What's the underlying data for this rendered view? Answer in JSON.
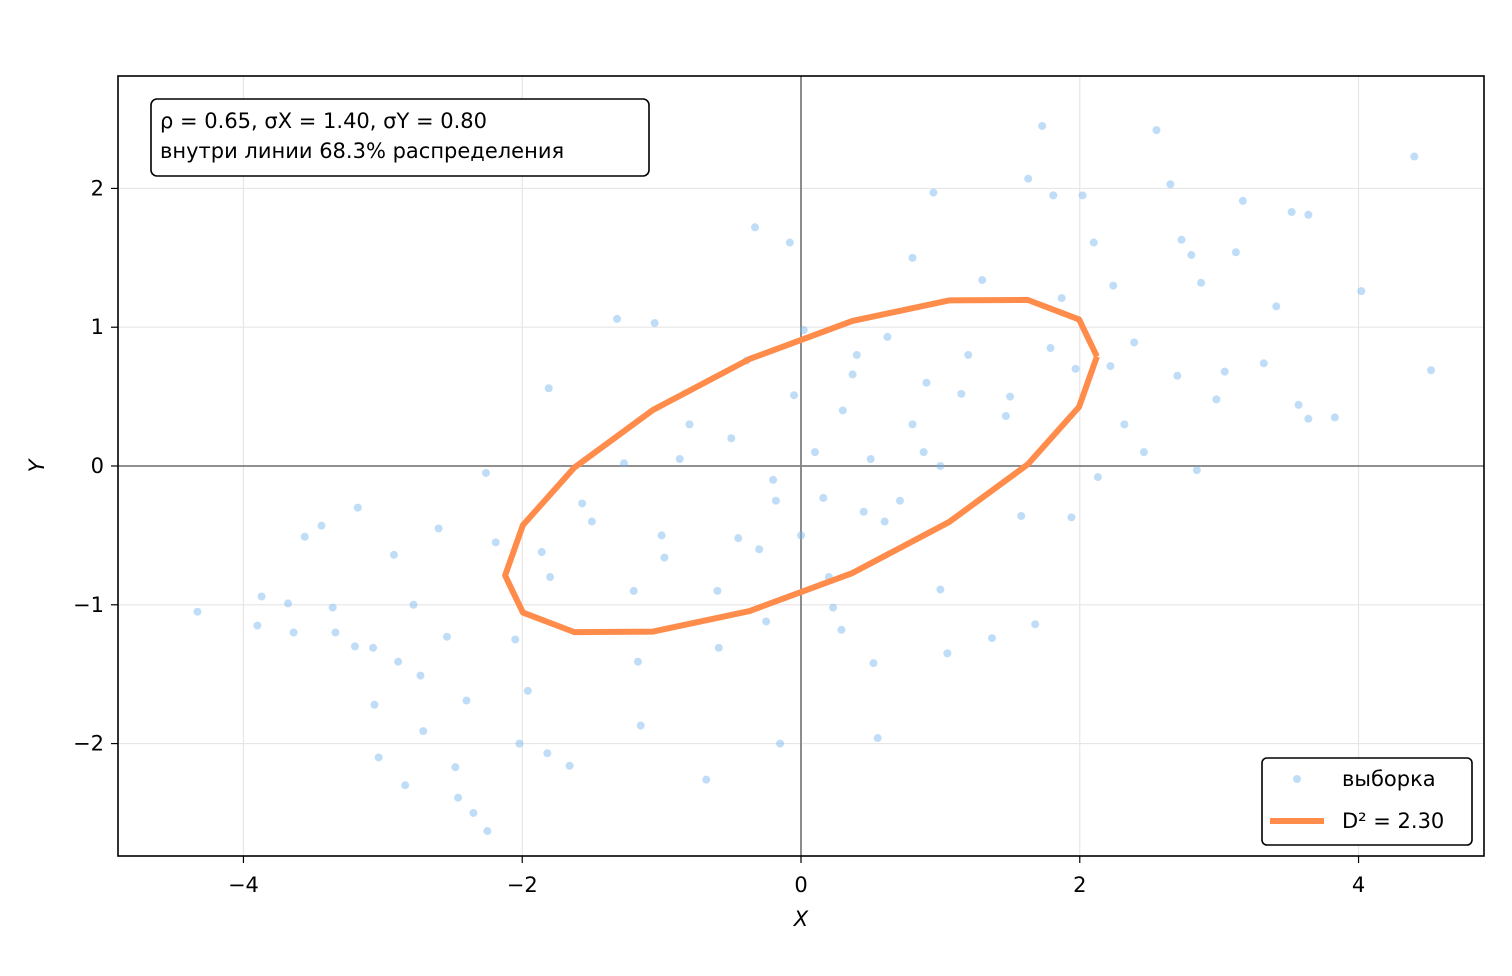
{
  "chart_data": {
    "type": "scatter",
    "xlabel": "X",
    "ylabel": "Y",
    "xlim": [
      -4.9,
      4.9
    ],
    "ylim": [
      -2.81,
      2.81
    ],
    "xticks": [
      {
        "value": -4,
        "label": "−4"
      },
      {
        "value": -2,
        "label": "−2"
      },
      0,
      2,
      4
    ],
    "yticks": [
      {
        "value": -2,
        "label": "−2"
      },
      {
        "value": -1,
        "label": "−1"
      },
      0,
      1,
      2
    ],
    "grid": true,
    "zero_lines": true,
    "legend": "lower right",
    "annotation": [
      "ρ = 0.65,  σX = 1.40,  σY = 0.80",
      "внутри линии 68.3% распределения"
    ],
    "series": [
      {
        "name": "выборка",
        "type": "scatter",
        "color": "#74b3f0",
        "x": [
          -4.33,
          -3.87,
          -3.9,
          -3.68,
          -3.64,
          -3.56,
          -3.44,
          -3.36,
          -3.34,
          -3.18,
          -3.2,
          -3.07,
          -3.06,
          -3.03,
          -2.92,
          -2.89,
          -2.84,
          -2.78,
          -2.73,
          -2.71,
          -2.6,
          -2.54,
          -2.48,
          -2.46,
          -2.4,
          -2.35,
          -2.26,
          -2.25,
          -2.19,
          -2.05,
          -2.02,
          -1.96,
          -1.86,
          -1.81,
          -1.82,
          -1.66,
          -1.57,
          -1.32,
          -1.27,
          -1.17,
          -1.15,
          -1.05,
          -0.98,
          -0.87,
          -0.68,
          -0.59,
          -0.45,
          -0.39,
          -0.33,
          -0.25,
          -0.18,
          -0.15,
          -0.05,
          -0.08,
          0.02,
          0.16,
          0.23,
          0.29,
          0.37,
          0.45,
          0.5,
          0.52,
          0.55,
          0.62,
          0.71,
          0.8,
          0.88,
          0.95,
          1.0,
          1.05,
          1.15,
          1.3,
          1.37,
          1.47,
          1.58,
          1.63,
          1.68,
          1.73,
          1.79,
          1.81,
          1.87,
          1.94,
          1.97,
          2.02,
          2.1,
          2.13,
          2.22,
          2.24,
          2.32,
          2.39,
          2.46,
          2.55,
          2.65,
          2.7,
          2.73,
          2.8,
          2.84,
          2.87,
          2.98,
          3.04,
          3.12,
          3.17,
          3.32,
          3.41,
          3.52,
          3.57,
          3.64,
          3.64,
          3.83,
          4.02,
          4.4,
          4.52,
          -0.5,
          0.3,
          -1.0,
          0.8,
          -0.3,
          1.2,
          -1.5,
          0.1,
          0.6,
          -0.8,
          1.0,
          -1.2,
          0.4,
          -0.2,
          1.5,
          -1.8,
          0.0,
          0.9,
          -0.6,
          0.2
        ],
        "values": [
          -1.05,
          -0.94,
          -1.15,
          -0.99,
          -1.2,
          -0.51,
          -0.43,
          -1.02,
          -1.2,
          -0.3,
          -1.3,
          -1.31,
          -1.72,
          -2.1,
          -0.64,
          -1.41,
          -2.3,
          -1.0,
          -1.51,
          -1.91,
          -0.45,
          -1.23,
          -2.17,
          -2.39,
          -1.69,
          -2.5,
          -0.05,
          -2.63,
          -0.55,
          -1.25,
          -2.0,
          -1.62,
          -0.62,
          0.56,
          -2.07,
          -2.16,
          -0.27,
          1.06,
          0.02,
          -1.41,
          -1.87,
          1.03,
          -0.66,
          0.05,
          -2.26,
          -1.31,
          -0.52,
          0.76,
          1.72,
          -1.12,
          -0.25,
          -2.0,
          0.51,
          1.61,
          0.98,
          -0.23,
          -1.02,
          -1.18,
          0.66,
          -0.33,
          0.05,
          -1.42,
          -1.96,
          0.93,
          -0.25,
          1.5,
          0.1,
          1.97,
          -0.89,
          -1.35,
          0.52,
          1.34,
          -1.24,
          0.36,
          -0.36,
          2.07,
          -1.14,
          2.45,
          0.85,
          1.95,
          1.21,
          -0.37,
          0.7,
          1.95,
          1.61,
          -0.08,
          0.72,
          1.3,
          0.3,
          0.89,
          0.1,
          2.42,
          2.03,
          0.65,
          1.63,
          1.52,
          -0.03,
          1.32,
          0.48,
          0.68,
          1.54,
          1.91,
          0.74,
          1.15,
          1.83,
          0.44,
          1.81,
          0.34,
          0.35,
          1.26,
          2.23,
          0.69,
          0.2,
          0.4,
          -0.5,
          0.3,
          -0.6,
          0.8,
          -0.4,
          0.1,
          -0.4,
          0.3,
          0.0,
          -0.9,
          0.8,
          -0.1,
          0.5,
          -0.8,
          -0.5,
          0.6,
          -0.9,
          -0.8
        ]
      },
      {
        "name": "D² = 2.30",
        "type": "line",
        "color": "#ff8c4a",
        "x": [
          2.123,
          1.995,
          1.626,
          1.062,
          0.369,
          -0.369,
          -1.062,
          -1.626,
          -1.995,
          -2.123,
          -1.995,
          -1.626,
          -1.062,
          -0.369,
          0.369,
          1.062,
          1.626,
          1.995,
          2.123
        ],
        "values": [
          0.789,
          1.056,
          1.197,
          1.193,
          1.045,
          0.771,
          0.404,
          -0.011,
          -0.426,
          -0.789,
          -1.056,
          -1.197,
          -1.193,
          -1.045,
          -0.771,
          -0.404,
          0.011,
          0.426,
          0.789
        ]
      }
    ]
  }
}
